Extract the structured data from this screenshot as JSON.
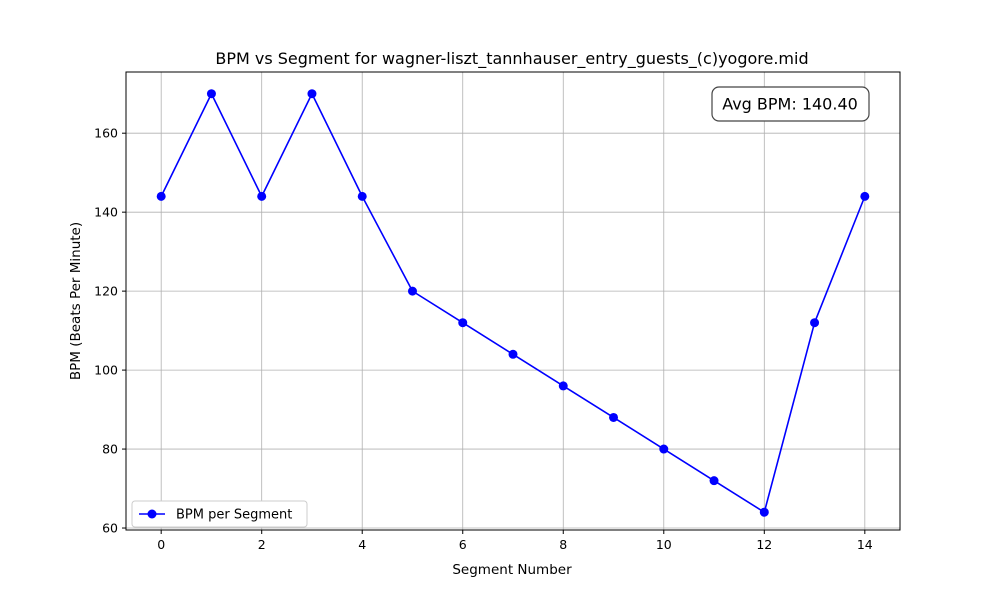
{
  "chart_data": {
    "type": "line",
    "title": "BPM vs Segment for wagner-liszt_tannhauser_entry_guests_(c)yogore.mid",
    "xlabel": "Segment Number",
    "ylabel": "BPM (Beats Per Minute)",
    "xlim": [
      -0.7,
      14.7
    ],
    "ylim": [
      59.5,
      175.5
    ],
    "xticks": [
      0,
      2,
      4,
      6,
      8,
      10,
      12,
      14
    ],
    "yticks": [
      60,
      80,
      100,
      120,
      140,
      160
    ],
    "grid": true,
    "legend_position": "lower-left",
    "series": [
      {
        "name": "BPM per Segment",
        "color": "#0000ff",
        "marker": "circle",
        "x": [
          0,
          1,
          2,
          3,
          4,
          5,
          6,
          7,
          8,
          9,
          10,
          11,
          12,
          13,
          14
        ],
        "values": [
          144,
          170,
          144,
          170,
          144,
          120,
          112,
          104,
          96,
          88,
          80,
          72,
          64,
          112,
          144
        ]
      }
    ],
    "annotation": {
      "text": "Avg BPM: 140.40",
      "position": "top-right"
    }
  }
}
